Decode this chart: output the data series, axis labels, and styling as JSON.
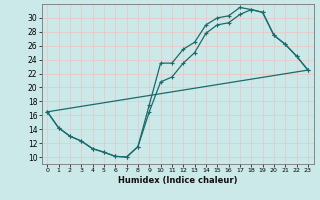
{
  "xlabel": "Humidex (Indice chaleur)",
  "ylabel": "",
  "bg_color": "#cce9e9",
  "grid_color": "#e8c8c8",
  "line_color": "#1a6b6b",
  "xlim": [
    -0.5,
    23.5
  ],
  "ylim": [
    9.0,
    32.0
  ],
  "yticks": [
    10,
    12,
    14,
    16,
    18,
    20,
    22,
    24,
    26,
    28,
    30
  ],
  "xticks": [
    0,
    1,
    2,
    3,
    4,
    5,
    6,
    7,
    8,
    9,
    10,
    11,
    12,
    13,
    14,
    15,
    16,
    17,
    18,
    19,
    20,
    21,
    22,
    23
  ],
  "curve1_x": [
    0,
    1,
    2,
    3,
    4,
    5,
    6,
    7,
    8,
    9,
    10,
    11,
    12,
    13,
    14,
    15,
    16,
    17,
    18,
    19,
    20,
    21,
    22,
    23
  ],
  "curve1_y": [
    16.5,
    14.2,
    13.0,
    12.3,
    11.2,
    10.7,
    10.1,
    10.0,
    11.5,
    16.5,
    20.8,
    21.5,
    23.5,
    25.0,
    27.8,
    29.0,
    29.3,
    30.5,
    31.2,
    30.8,
    27.5,
    26.2,
    24.5,
    22.5
  ],
  "curve2_x": [
    0,
    1,
    2,
    3,
    4,
    5,
    6,
    7,
    8,
    9,
    10,
    11,
    12,
    13,
    14,
    15,
    16,
    17,
    18,
    19,
    20,
    21,
    22,
    23
  ],
  "curve2_y": [
    16.5,
    14.2,
    13.0,
    12.3,
    11.2,
    10.7,
    10.1,
    10.0,
    11.5,
    17.5,
    23.5,
    23.5,
    25.5,
    26.5,
    29.0,
    30.0,
    30.3,
    31.5,
    31.2,
    30.8,
    27.5,
    26.2,
    24.5,
    22.5
  ],
  "line3_x": [
    0,
    23
  ],
  "line3_y": [
    16.5,
    22.5
  ]
}
